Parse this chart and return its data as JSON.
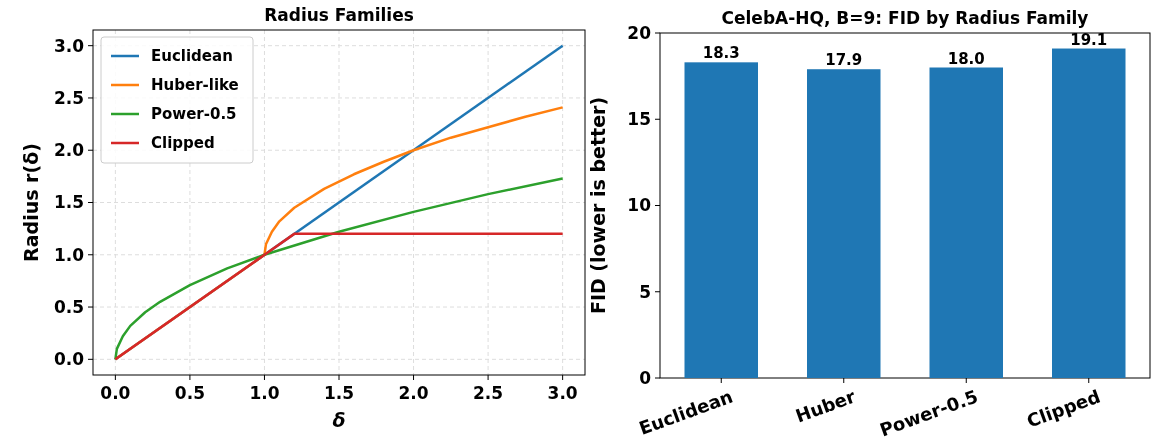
{
  "chart_data": [
    {
      "type": "line",
      "title": "Radius Families",
      "xlabel": "δ",
      "ylabel": "Radius r(δ)",
      "xlim": [
        -0.15,
        3.15
      ],
      "ylim": [
        -0.15,
        3.15
      ],
      "xticks": [
        {
          "value": 0,
          "label": "0.0"
        },
        {
          "value": 0.5,
          "label": "0.5"
        },
        {
          "value": 1,
          "label": "1.0"
        },
        {
          "value": 1.5,
          "label": "1.5"
        },
        {
          "value": 2,
          "label": "2.0"
        },
        {
          "value": 2.5,
          "label": "2.5"
        },
        {
          "value": 3,
          "label": "3.0"
        }
      ],
      "yticks": [
        {
          "value": 0,
          "label": "0.0"
        },
        {
          "value": 0.5,
          "label": "0.5"
        },
        {
          "value": 1,
          "label": "1.0"
        },
        {
          "value": 1.5,
          "label": "1.5"
        },
        {
          "value": 2,
          "label": "2.0"
        },
        {
          "value": 2.5,
          "label": "2.5"
        },
        {
          "value": 3,
          "label": "3.0"
        }
      ],
      "grid": true,
      "legend": "top left",
      "series": [
        {
          "name": "Euclidean",
          "color": "#1f77b4",
          "x": [
            0,
            3
          ],
          "values": [
            0,
            3
          ]
        },
        {
          "name": "Huber-like",
          "color": "#ff7f0e",
          "x": [
            0,
            1,
            1.01,
            1.05,
            1.1,
            1.2,
            1.4,
            1.6,
            1.8,
            2,
            2.25,
            2.5,
            2.75,
            3
          ],
          "values": [
            0,
            1,
            1.1,
            1.22,
            1.32,
            1.45,
            1.63,
            1.77,
            1.89,
            2.0,
            2.12,
            2.22,
            2.32,
            2.41
          ]
        },
        {
          "name": "Power-0.5",
          "color": "#2ca02c",
          "x": [
            0,
            0.01,
            0.05,
            0.1,
            0.2,
            0.3,
            0.5,
            0.75,
            1,
            1.5,
            2,
            2.5,
            3
          ],
          "values": [
            0,
            0.1,
            0.22,
            0.32,
            0.45,
            0.55,
            0.71,
            0.87,
            1,
            1.22,
            1.41,
            1.58,
            1.73
          ]
        },
        {
          "name": "Clipped",
          "color": "#d62728",
          "x": [
            0,
            1.2,
            3
          ],
          "values": [
            0,
            1.2,
            1.2
          ]
        }
      ]
    },
    {
      "type": "bar",
      "title": "CelebA-HQ, B=9: FID by Radius Family",
      "ylabel": "FID (lower is better)",
      "categories": [
        "Euclidean",
        "Huber",
        "Power-0.5",
        "Clipped"
      ],
      "values": [
        18.3,
        17.9,
        18.0,
        19.1
      ],
      "value_labels": [
        "18.3",
        "17.9",
        "18.0",
        "19.1"
      ],
      "color": "#1f77b4",
      "ylim": [
        0,
        20
      ],
      "yticks": [
        0,
        5,
        10,
        15,
        20
      ]
    }
  ]
}
